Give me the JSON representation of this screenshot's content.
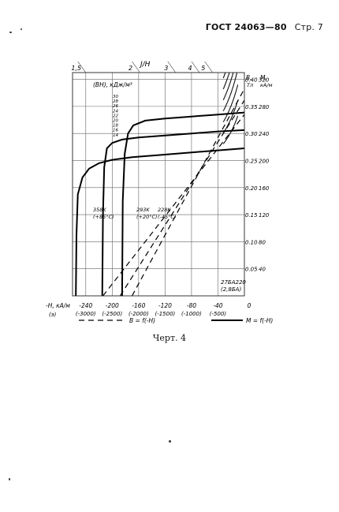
{
  "header": {
    "standard": "ГОСТ 24063—80",
    "page": "Стр. 7"
  },
  "caption": "Черт. 4",
  "chart_data": {
    "type": "line",
    "title": "",
    "xlabel": "-H, кА/м",
    "xlabel_note": "(э)",
    "xlim": [
      -260,
      0
    ],
    "x_ticks": [
      {
        "value": -240,
        "label": "-240",
        "sub": "(-3000)"
      },
      {
        "value": -200,
        "label": "-200",
        "sub": "(-2500)"
      },
      {
        "value": -160,
        "label": "-160",
        "sub": "(-2000)"
      },
      {
        "value": -120,
        "label": "-120",
        "sub": "(-1500)"
      },
      {
        "value": -80,
        "label": "-80",
        "sub": "(-1000)"
      },
      {
        "value": -40,
        "label": "-40",
        "sub": "(-500)"
      },
      {
        "value": 0,
        "label": "0",
        "sub": ""
      }
    ],
    "left_axis": {
      "ylabel": "(BH), кДж/м³",
      "ticks": [
        "30",
        "28",
        "26",
        "24",
        "22",
        "20",
        "18",
        "16",
        "14"
      ]
    },
    "right_axis": {
      "label_B": "B,",
      "unit_B": "Тл",
      "label_M": "M,",
      "unit_M": "кА/м",
      "ylim_M": [
        0,
        330
      ],
      "ticks": [
        {
          "B": "0.40",
          "M": "320",
          "value": 320
        },
        {
          "B": "0.35",
          "M": "280",
          "value": 280
        },
        {
          "B": "0.30",
          "M": "240",
          "value": 240
        },
        {
          "B": "0.25",
          "M": "200",
          "value": 200
        },
        {
          "B": "0.20",
          "M": "160",
          "value": 160
        },
        {
          "B": "0.15",
          "M": "120",
          "value": 120
        },
        {
          "B": "0.10",
          "M": "80",
          "value": 80
        },
        {
          "B": "0.05",
          "M": "40",
          "value": 40
        }
      ]
    },
    "top_axis": {
      "label": "J/H",
      "ticks": [
        {
          "label": "1,5",
          "x": -240
        },
        {
          "label": "2",
          "x": -158
        },
        {
          "label": "3",
          "x": -104
        },
        {
          "label": "4",
          "x": -68
        },
        {
          "label": "5",
          "x": -48
        }
      ]
    },
    "curve_labels": [
      {
        "temp": "358K",
        "celsius": "(+85°C)"
      },
      {
        "temp": "293K",
        "celsius": "(+20°C)"
      },
      {
        "temp": "228K",
        "celsius": "(-45°C)"
      }
    ],
    "material_label": {
      "line1": "27БА220",
      "line2": "(2,8БА)"
    },
    "legend": [
      {
        "label": "B = f(-H)",
        "style": "dashed"
      },
      {
        "label": "M = f(-H)",
        "style": "solid"
      }
    ],
    "series": [
      {
        "name": "358K",
        "style": "solid",
        "x": [
          -255,
          -254,
          -252,
          -245,
          -235,
          -220,
          -200,
          -170,
          -130,
          -80,
          -40,
          0
        ],
        "y": [
          0,
          90,
          150,
          175,
          188,
          196,
          201,
          205,
          208,
          212,
          215,
          218
        ]
      },
      {
        "name": "293K",
        "style": "solid",
        "x": [
          -215,
          -214,
          -212,
          -208,
          -200,
          -185,
          -160,
          -120,
          -80,
          -40,
          0
        ],
        "y": [
          0,
          120,
          190,
          218,
          226,
          231,
          234,
          237,
          240,
          243,
          245
        ]
      },
      {
        "name": "228K",
        "style": "solid",
        "x": [
          -185,
          -184,
          -181,
          -176,
          -168,
          -150,
          -120,
          -80,
          -40,
          0
        ],
        "y": [
          0,
          140,
          210,
          240,
          252,
          259,
          262,
          265,
          268,
          271
        ]
      },
      {
        "name": "358K",
        "style": "dashed",
        "x": [
          -214,
          0
        ],
        "y": [
          0,
          268
        ]
      },
      {
        "name": "293K",
        "style": "dashed",
        "x": [
          -188,
          0
        ],
        "y": [
          0,
          289
        ]
      },
      {
        "name": "228K",
        "style": "dashed",
        "x": [
          -170,
          0
        ],
        "y": [
          0,
          306
        ]
      }
    ],
    "bh_hyperbolas": [
      30,
      28,
      26,
      24,
      22,
      20,
      18,
      16,
      14
    ]
  }
}
